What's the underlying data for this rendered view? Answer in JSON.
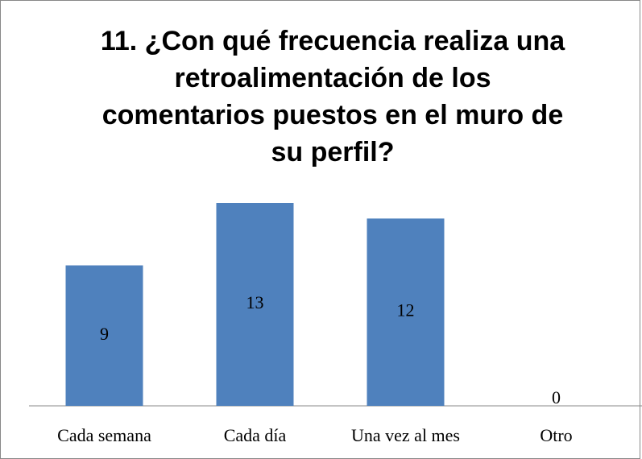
{
  "chart_data": {
    "type": "bar",
    "title": "11. ¿Con qué frecuencia realiza una retroalimentación de los comentarios puestos en el muro de su perfil?",
    "categories": [
      "Cada semana",
      "Cada día",
      "Una vez al mes",
      "Otro"
    ],
    "values": [
      9,
      13,
      12,
      0
    ],
    "color": "#4f81bd"
  }
}
